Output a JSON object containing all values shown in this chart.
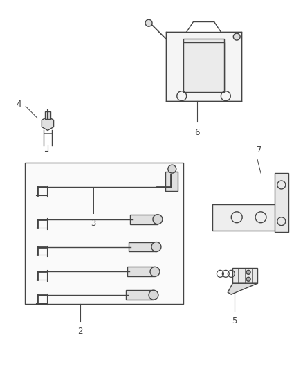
{
  "background_color": "#ffffff",
  "fig_width": 4.39,
  "fig_height": 5.33,
  "dpi": 100,
  "line_color": "#444444",
  "line_width": 1.0,
  "label_fontsize": 8.5
}
